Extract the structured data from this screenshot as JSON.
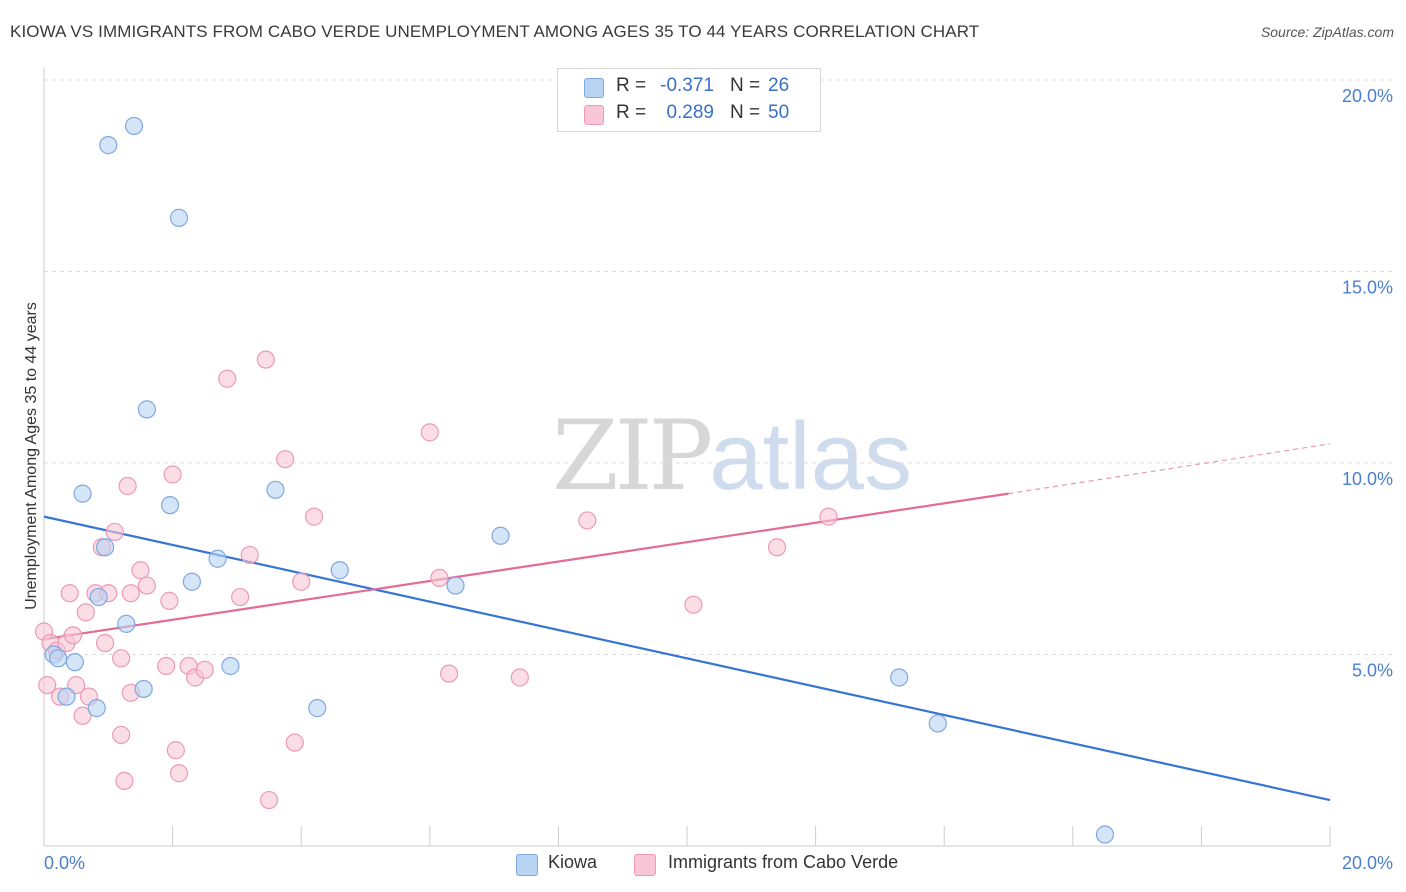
{
  "title": "KIOWA VS IMMIGRANTS FROM CABO VERDE UNEMPLOYMENT AMONG AGES 35 TO 44 YEARS CORRELATION CHART",
  "source": "Source: ZipAtlas.com",
  "watermark": {
    "zip": "ZIP",
    "atlas": "atlas"
  },
  "colors": {
    "kiowa_fill": "#b9d3f3",
    "kiowa_stroke": "#7fa8e0",
    "kiowa_line": "#3575d3",
    "cabo_fill": "#f8c6d6",
    "cabo_stroke": "#ec9ab5",
    "cabo_line": "#e46c93",
    "axis_label": "#4a7fd0",
    "grid": "#dddddd"
  },
  "legend": {
    "rows": [
      {
        "r_key": "R =",
        "r_value": "-0.371",
        "n_key": "N =",
        "n_value": "26"
      },
      {
        "r_key": "R =",
        "r_value": "0.289",
        "n_key": "N =",
        "n_value": "50"
      }
    ]
  },
  "bottom_legend": {
    "series1": "Kiowa",
    "series2": "Immigrants from Cabo Verde"
  },
  "chart_data": {
    "type": "scatter",
    "title": "KIOWA VS IMMIGRANTS FROM CABO VERDE UNEMPLOYMENT AMONG AGES 35 TO 44 YEARS CORRELATION CHART",
    "xlabel": "",
    "ylabel": "Unemployment Among Ages 35 to 44 years",
    "xlim": [
      0,
      20
    ],
    "ylim": [
      0,
      20
    ],
    "x_tick_labels": [
      "0.0%",
      "20.0%"
    ],
    "y_ticks": [
      5,
      10,
      15,
      20
    ],
    "y_tick_labels": [
      "5.0%",
      "10.0%",
      "15.0%",
      "20.0%"
    ],
    "grid": true,
    "series": [
      {
        "name": "Kiowa",
        "R": -0.371,
        "N": 26,
        "trend": {
          "x0": 0,
          "y0": 8.6,
          "x1": 20,
          "y1": 1.2
        },
        "points": [
          [
            1.0,
            18.3
          ],
          [
            1.4,
            18.8
          ],
          [
            2.1,
            16.4
          ],
          [
            1.6,
            11.4
          ],
          [
            0.6,
            9.2
          ],
          [
            1.96,
            8.9
          ],
          [
            3.6,
            9.3
          ],
          [
            0.95,
            7.8
          ],
          [
            2.7,
            7.5
          ],
          [
            2.3,
            6.9
          ],
          [
            0.85,
            6.5
          ],
          [
            1.28,
            5.8
          ],
          [
            0.15,
            5.0
          ],
          [
            0.22,
            4.9
          ],
          [
            0.48,
            4.8
          ],
          [
            2.9,
            4.7
          ],
          [
            1.55,
            4.1
          ],
          [
            0.35,
            3.9
          ],
          [
            0.82,
            3.6
          ],
          [
            4.25,
            3.6
          ],
          [
            4.6,
            7.2
          ],
          [
            6.4,
            6.8
          ],
          [
            7.1,
            8.1
          ],
          [
            13.3,
            4.4
          ],
          [
            13.9,
            3.2
          ],
          [
            16.5,
            0.3
          ]
        ]
      },
      {
        "name": "Immigrants from Cabo Verde",
        "R": 0.289,
        "N": 50,
        "trend": {
          "x0": 0,
          "y0": 5.4,
          "x1": 15,
          "y1": 9.2,
          "dash_to_x": 20,
          "dash_to_y": 10.5
        },
        "points": [
          [
            0.0,
            5.6
          ],
          [
            0.05,
            4.2
          ],
          [
            0.1,
            5.3
          ],
          [
            0.2,
            5.1
          ],
          [
            0.25,
            3.9
          ],
          [
            0.35,
            5.3
          ],
          [
            0.4,
            6.6
          ],
          [
            0.45,
            5.5
          ],
          [
            0.5,
            4.2
          ],
          [
            0.6,
            3.4
          ],
          [
            0.65,
            6.1
          ],
          [
            0.7,
            3.9
          ],
          [
            0.8,
            6.6
          ],
          [
            0.9,
            7.8
          ],
          [
            0.95,
            5.3
          ],
          [
            1.0,
            6.6
          ],
          [
            1.1,
            8.2
          ],
          [
            1.2,
            4.9
          ],
          [
            1.2,
            2.9
          ],
          [
            1.25,
            1.7
          ],
          [
            1.3,
            9.4
          ],
          [
            1.35,
            6.6
          ],
          [
            1.35,
            4.0
          ],
          [
            1.5,
            7.2
          ],
          [
            1.6,
            6.8
          ],
          [
            1.9,
            4.7
          ],
          [
            1.95,
            6.4
          ],
          [
            2.0,
            9.7
          ],
          [
            2.05,
            2.5
          ],
          [
            2.1,
            1.9
          ],
          [
            2.25,
            4.7
          ],
          [
            2.35,
            4.4
          ],
          [
            2.5,
            4.6
          ],
          [
            2.85,
            12.2
          ],
          [
            3.05,
            6.5
          ],
          [
            3.2,
            7.6
          ],
          [
            3.45,
            12.7
          ],
          [
            3.5,
            1.2
          ],
          [
            3.75,
            10.1
          ],
          [
            3.9,
            2.7
          ],
          [
            4.0,
            6.9
          ],
          [
            4.2,
            8.6
          ],
          [
            6.0,
            10.8
          ],
          [
            6.15,
            7.0
          ],
          [
            6.3,
            4.5
          ],
          [
            7.4,
            4.4
          ],
          [
            8.45,
            8.5
          ],
          [
            10.1,
            6.3
          ],
          [
            11.4,
            7.8
          ],
          [
            12.2,
            8.6
          ]
        ]
      }
    ]
  }
}
